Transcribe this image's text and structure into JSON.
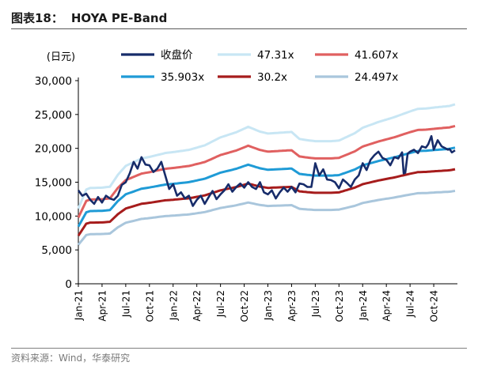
{
  "figure": {
    "label": "图表18：",
    "title": "HOYA PE-Band",
    "source": "资料来源：Wind，华泰研究"
  },
  "chart_data": {
    "type": "line",
    "title": "HOYA PE-Band",
    "ylabel": "(日元)",
    "xlabel": "",
    "ylim": [
      0,
      30000
    ],
    "yticks": [
      0,
      5000,
      10000,
      15000,
      20000,
      25000,
      30000
    ],
    "ytick_labels": [
      "0",
      "5,000",
      "10,000",
      "15,000",
      "20,000",
      "25,000",
      "30,000"
    ],
    "xlim": [
      0,
      48
    ],
    "xticks": [
      0,
      3,
      6,
      9,
      12,
      15,
      18,
      21,
      24,
      27,
      30,
      33,
      36,
      39,
      42,
      45
    ],
    "xtick_labels": [
      "Jan-21",
      "Apr-21",
      "Jul-21",
      "Oct-21",
      "Jan-22",
      "Apr-22",
      "Jul-22",
      "Oct-22",
      "Jan-23",
      "Apr-23",
      "Jul-23",
      "Oct-23",
      "Jan-24",
      "Apr-24",
      "Jul-24",
      "Oct-24"
    ],
    "x_unit": "months since Jan-2021",
    "legend_position": "top",
    "eps_x": [
      0,
      1,
      1.5,
      3,
      4,
      5,
      6,
      8,
      9,
      11,
      12,
      14,
      16,
      18,
      20,
      21.5,
      23,
      24,
      27,
      28,
      29,
      30,
      32,
      33,
      35,
      36,
      38,
      40,
      42,
      43,
      44,
      45,
      47,
      47.7
    ],
    "eps_values": [
      235,
      294,
      299,
      300,
      303,
      340,
      368,
      391,
      396,
      408,
      411,
      418,
      432,
      457,
      473,
      490,
      475,
      469,
      474,
      452,
      448,
      445,
      445,
      447,
      470,
      487,
      505,
      520,
      538,
      546,
      547,
      550,
      555,
      560
    ],
    "price_series": {
      "name": "收盘价",
      "color": "#172c6a",
      "x": [
        0,
        0.5,
        1,
        1.5,
        2,
        2.5,
        3,
        3.5,
        4,
        4.5,
        5,
        5.5,
        6,
        6.5,
        7,
        7.5,
        8,
        8.5,
        9,
        9.5,
        10,
        10.5,
        11,
        11.5,
        12,
        12.5,
        13,
        13.5,
        14,
        14.5,
        15,
        15.5,
        16,
        16.5,
        17,
        17.5,
        18,
        18.5,
        19,
        19.5,
        20,
        20.5,
        21,
        21.5,
        22,
        22.5,
        23,
        23.5,
        24,
        24.5,
        25,
        25.5,
        26,
        26.5,
        27,
        27.5,
        28,
        28.5,
        29,
        29.5,
        30,
        30.5,
        31,
        31.5,
        32,
        32.5,
        33,
        33.5,
        34,
        34.5,
        35,
        35.5,
        36,
        36.5,
        37,
        37.5,
        38,
        38.5,
        39,
        39.5,
        40,
        40.5,
        41,
        41.2,
        41.4,
        41.7,
        42,
        42.5,
        43,
        43.5,
        44,
        44.3,
        44.7,
        45,
        45.5,
        46,
        46.5,
        46.8,
        47,
        47.3,
        47.7
      ],
      "values": [
        13800,
        13000,
        13300,
        12400,
        11800,
        12800,
        12000,
        13000,
        12600,
        12400,
        13000,
        14600,
        15000,
        16300,
        18000,
        17000,
        18700,
        17600,
        17500,
        16500,
        17000,
        18000,
        16000,
        14000,
        14700,
        13000,
        13500,
        12600,
        13000,
        11500,
        12400,
        13000,
        11800,
        12800,
        13700,
        12500,
        13200,
        13800,
        14700,
        13600,
        14300,
        14800,
        14200,
        15000,
        14300,
        14000,
        15000,
        13500,
        13200,
        13800,
        12600,
        13500,
        14200,
        13600,
        14300,
        13500,
        14800,
        14700,
        14300,
        14300,
        17800,
        16000,
        16900,
        15400,
        15300,
        15000,
        14100,
        15400,
        14900,
        14300,
        15400,
        16000,
        17800,
        16800,
        18300,
        19000,
        19500,
        18600,
        18300,
        17500,
        18700,
        18500,
        19400,
        16300,
        16400,
        19200,
        19500,
        19800,
        19300,
        20300,
        20100,
        20600,
        21800,
        19800,
        21200,
        20300,
        20000,
        19800,
        19900,
        19400,
        19700
      ]
    },
    "series": [
      {
        "name": "47.31x",
        "multiple": 47.31,
        "color": "#c8e6f4"
      },
      {
        "name": "41.607x",
        "multiple": 41.607,
        "color": "#e06060"
      },
      {
        "name": "35.903x",
        "multiple": 35.903,
        "color": "#1f9bd6"
      },
      {
        "name": "30.2x",
        "multiple": 30.2,
        "color": "#a61c1c"
      },
      {
        "name": "24.497x",
        "multiple": 24.497,
        "color": "#a9c6dc"
      }
    ]
  }
}
